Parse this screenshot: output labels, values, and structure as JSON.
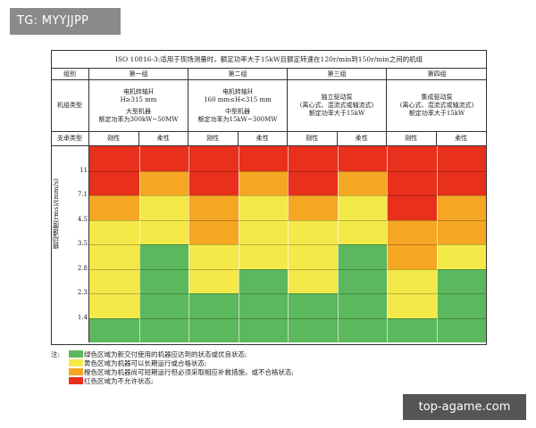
{
  "overlay": {
    "top_tag": "TG: MYYJJPP",
    "bottom_tag": "top-agame.com"
  },
  "table": {
    "title": "ISO 10816-3:适用于现场测量时，额定功率大于15kW且额定转速在120r/min到150r/min之间的机组",
    "row_header_group": "组别",
    "row_header_type": "机组类型",
    "row_header_support": "支承类型",
    "groups": [
      {
        "name": "第一组",
        "line1": "电机转轴H",
        "line2": "H≥315 mm",
        "line3": "大型机器",
        "line4": "额定功率为300kW~50MW"
      },
      {
        "name": "第二组",
        "line1": "电机转轴H",
        "line2": "160 mm≤H<315 mm",
        "line3": "中型机器",
        "line4": "额定功率为15kW~300MW"
      },
      {
        "name": "第三组",
        "line1": "独立驱动泵",
        "line2": "(离心式、混流式或轴流式)",
        "line3": "额定功率大于15kW",
        "line4": ""
      },
      {
        "name": "第四组",
        "line1": "集成驱动泵",
        "line2": "(离心式、混流式或轴流式)",
        "line3": "额定功率大于15kW",
        "line4": ""
      }
    ],
    "support_labels": [
      "刚性",
      "柔性",
      "刚性",
      "柔性",
      "刚性",
      "柔性",
      "刚性",
      "柔性"
    ],
    "y_axis_title": "振动速度(rms)/(mm/s)",
    "y_ticks": [
      "11",
      "7.1",
      "4.5",
      "3.5",
      "2.8",
      "2.3",
      "1.4"
    ]
  },
  "zones": {
    "colors": {
      "A": "#5cb85c",
      "B": "#f5e94a",
      "C": "#f5a623",
      "D": "#e8301c"
    },
    "boundaries": [
      0,
      1.4,
      2.3,
      2.8,
      3.5,
      4.5,
      7.1,
      11,
      14
    ],
    "columns": [
      [
        "A",
        "B",
        "B",
        "B",
        "B",
        "C",
        "D",
        "D"
      ],
      [
        "A",
        "A",
        "A",
        "A",
        "B",
        "B",
        "C",
        "D"
      ],
      [
        "A",
        "A",
        "B",
        "B",
        "C",
        "C",
        "D",
        "D"
      ],
      [
        "A",
        "A",
        "A",
        "B",
        "B",
        "B",
        "C",
        "D"
      ],
      [
        "A",
        "A",
        "B",
        "B",
        "B",
        "C",
        "D",
        "D"
      ],
      [
        "A",
        "A",
        "A",
        "A",
        "B",
        "B",
        "C",
        "D"
      ],
      [
        "A",
        "B",
        "B",
        "C",
        "C",
        "D",
        "D",
        "D"
      ],
      [
        "A",
        "A",
        "A",
        "B",
        "C",
        "C",
        "D",
        "D"
      ]
    ]
  },
  "legend": {
    "note": "注:",
    "items": [
      {
        "zone": "A",
        "text": "绿色区域为新交付使用的机器应达到的状态或优良状态;"
      },
      {
        "zone": "B",
        "text": "黄色区域为机器可以长期运行或合格状态;"
      },
      {
        "zone": "C",
        "text": "橙色区域为机器尚可短期运行但必须采取相应补救措施，或不合格状态;"
      },
      {
        "zone": "D",
        "text": "红色区域为不允许状态;"
      }
    ]
  }
}
